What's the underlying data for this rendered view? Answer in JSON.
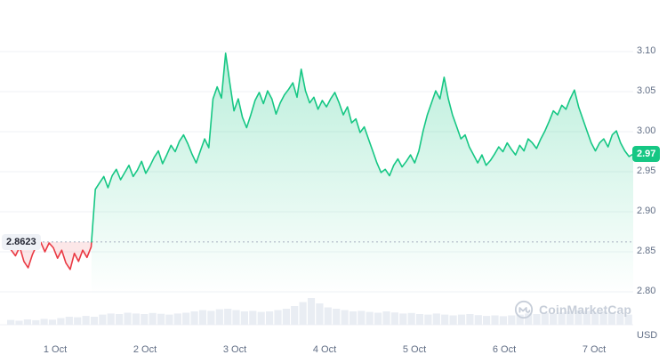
{
  "chart": {
    "open_price_label": "2.8623",
    "current_price_label": "2.97",
    "currency_label": "USD",
    "watermark": "CoinMarketCap",
    "colors": {
      "up": "#16c784",
      "down": "#ea3943",
      "grid": "#eff2f5",
      "axis_text": "#616e85",
      "volume": "#e9edf3",
      "baseline_line": "#a8b1c2"
    }
  },
  "chart_data": {
    "type": "area",
    "xlabel": "",
    "ylabel": "USD",
    "grid": "horizontal",
    "legend": false,
    "ylim": [
      2.8,
      3.1
    ],
    "baseline": 2.8623,
    "x_tick_labels": [
      "1 Oct",
      "2 Oct",
      "3 Oct",
      "4 Oct",
      "5 Oct",
      "6 Oct",
      "7 Oct"
    ],
    "y_ticks": [
      3.1,
      3.05,
      3.0,
      2.95,
      2.9,
      2.85,
      2.8
    ],
    "y_tick_labels": [
      "3.10",
      "3.05",
      "3.00",
      "2.95",
      "2.90",
      "2.85",
      "2.80"
    ],
    "prices": [
      2.861,
      2.852,
      2.845,
      2.856,
      2.838,
      2.83,
      2.846,
      2.858,
      2.862,
      2.85,
      2.861,
      2.855,
      2.842,
      2.852,
      2.836,
      2.828,
      2.848,
      2.838,
      2.852,
      2.843,
      2.856,
      2.928,
      2.936,
      2.944,
      2.93,
      2.945,
      2.953,
      2.94,
      2.949,
      2.958,
      2.944,
      2.952,
      2.963,
      2.948,
      2.957,
      2.968,
      2.976,
      2.96,
      2.971,
      2.983,
      2.975,
      2.988,
      2.996,
      2.985,
      2.972,
      2.961,
      2.976,
      2.991,
      2.98,
      3.041,
      3.056,
      3.042,
      3.098,
      3.061,
      3.026,
      3.041,
      3.018,
      3.005,
      3.021,
      3.039,
      3.049,
      3.035,
      3.051,
      3.041,
      3.022,
      3.036,
      3.046,
      3.053,
      3.061,
      3.043,
      3.078,
      3.051,
      3.036,
      3.043,
      3.028,
      3.039,
      3.031,
      3.041,
      3.049,
      3.036,
      3.021,
      3.031,
      3.011,
      3.016,
      2.999,
      3.006,
      2.991,
      2.976,
      2.961,
      2.949,
      2.953,
      2.945,
      2.958,
      2.966,
      2.956,
      2.963,
      2.971,
      2.961,
      2.976,
      3.001,
      3.021,
      3.036,
      3.051,
      3.041,
      3.068,
      3.041,
      3.021,
      3.006,
      2.991,
      2.996,
      2.981,
      2.971,
      2.961,
      2.971,
      2.958,
      2.964,
      2.972,
      2.981,
      2.975,
      2.986,
      2.978,
      2.971,
      2.983,
      2.976,
      2.991,
      2.986,
      2.979,
      2.991,
      3.001,
      3.013,
      3.026,
      3.021,
      3.033,
      3.028,
      3.041,
      3.052,
      3.031,
      3.016,
      3.001,
      2.986,
      2.976,
      2.986,
      2.991,
      2.981,
      2.996,
      3.001,
      2.986,
      2.976,
      2.969,
      2.972
    ],
    "volumes": [
      0.18,
      0.15,
      0.2,
      0.17,
      0.22,
      0.19,
      0.25,
      0.3,
      0.28,
      0.33,
      0.3,
      0.38,
      0.42,
      0.4,
      0.45,
      0.42,
      0.4,
      0.44,
      0.41,
      0.38,
      0.42,
      0.45,
      0.5,
      0.55,
      0.52,
      0.58,
      0.6,
      0.55,
      0.5,
      0.52,
      0.48,
      0.5,
      0.55,
      0.6,
      0.7,
      0.85,
      1.0,
      0.8,
      0.65,
      0.6,
      0.55,
      0.5,
      0.52,
      0.48,
      0.45,
      0.5,
      0.46,
      0.42,
      0.44,
      0.4,
      0.38,
      0.42,
      0.38,
      0.35,
      0.38,
      0.4,
      0.36,
      0.33,
      0.35,
      0.32,
      0.35,
      0.38,
      0.42,
      0.4,
      0.44,
      0.42,
      0.46,
      0.5,
      0.55,
      0.52,
      0.48,
      0.5,
      0.45,
      0.4,
      0.38
    ]
  }
}
